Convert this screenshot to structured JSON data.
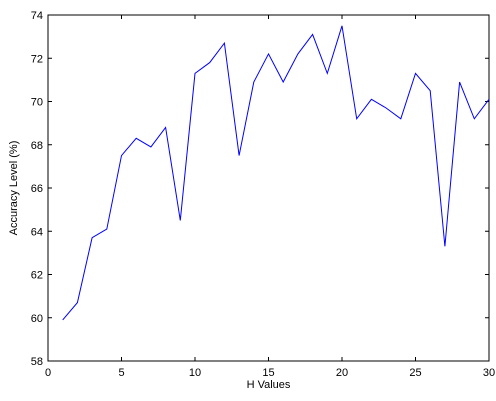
{
  "chart_data": {
    "type": "line",
    "title": "",
    "xlabel": "H Values",
    "ylabel": "Accuracy Level (%)",
    "xlim": [
      0,
      30
    ],
    "ylim": [
      58,
      74
    ],
    "x_ticks": [
      0,
      5,
      10,
      15,
      20,
      25,
      30
    ],
    "y_ticks": [
      58,
      60,
      62,
      64,
      66,
      68,
      70,
      72,
      74
    ],
    "grid": false,
    "box": true,
    "series": [
      {
        "color": "#0000ff",
        "x": [
          1,
          2,
          3,
          4,
          5,
          6,
          7,
          8,
          9,
          10,
          11,
          12,
          13,
          14,
          15,
          16,
          17,
          18,
          19,
          20,
          21,
          22,
          23,
          24,
          25,
          26,
          27,
          28,
          29,
          30
        ],
        "y": [
          59.9,
          60.7,
          63.7,
          64.1,
          67.5,
          68.3,
          67.9,
          68.8,
          64.5,
          71.3,
          71.8,
          72.7,
          67.5,
          70.9,
          72.2,
          70.9,
          72.2,
          73.1,
          71.3,
          73.5,
          69.2,
          70.1,
          69.7,
          69.2,
          71.3,
          70.5,
          63.3,
          70.9,
          69.2,
          70.1
        ]
      }
    ]
  }
}
